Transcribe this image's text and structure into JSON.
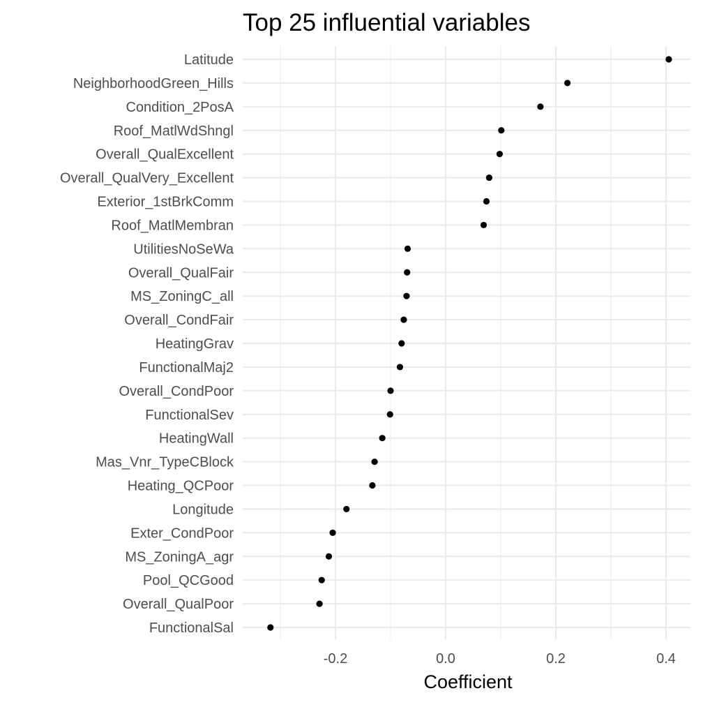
{
  "chart_data": {
    "type": "scatter",
    "title": "Top 25 influential variables",
    "xlabel": "Coefficient",
    "ylabel": "",
    "xlim": [
      -0.35,
      0.42
    ],
    "xticks": [
      -0.2,
      0.0,
      0.2,
      0.4
    ],
    "xtick_labels": [
      "-0.2",
      "0.0",
      "0.2",
      "0.4"
    ],
    "grid": true,
    "legend": "none",
    "point_color": "#000000",
    "grid_color": "#ebebeb",
    "categories": [
      "Latitude",
      "NeighborhoodGreen_Hills",
      "Condition_2PosA",
      "Roof_MatlWdShngl",
      "Overall_QualExcellent",
      "Overall_QualVery_Excellent",
      "Exterior_1stBrkComm",
      "Roof_MatlMembran",
      "UtilitiesNoSeWa",
      "Overall_QualFair",
      "MS_ZoningC_all",
      "Overall_CondFair",
      "HeatingGrav",
      "FunctionalMaj2",
      "Overall_CondPoor",
      "FunctionalSev",
      "HeatingWall",
      "Mas_Vnr_TypeCBlock",
      "Heating_QCPoor",
      "Longitude",
      "Exter_CondPoor",
      "MS_ZoningA_agr",
      "Pool_QCGood",
      "Overall_QualPoor",
      "FunctionalSal"
    ],
    "values": [
      0.405,
      0.221,
      0.172,
      0.101,
      0.098,
      0.079,
      0.074,
      0.069,
      -0.069,
      -0.07,
      -0.071,
      -0.076,
      -0.08,
      -0.083,
      -0.1,
      -0.101,
      -0.115,
      -0.129,
      -0.133,
      -0.18,
      -0.205,
      -0.212,
      -0.225,
      -0.229,
      -0.318
    ]
  }
}
